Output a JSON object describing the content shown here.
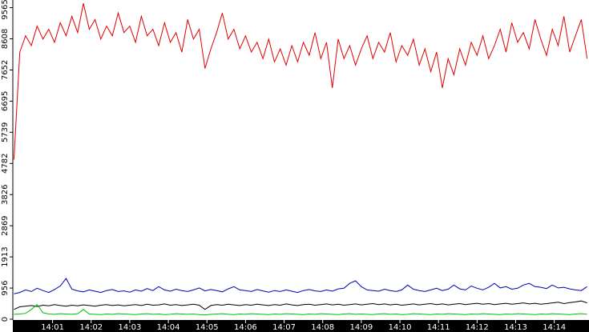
{
  "chart_data": {
    "type": "line",
    "x": [
      0,
      0.15,
      0.3,
      0.45,
      0.6,
      0.75,
      0.9,
      1.05,
      1.2,
      1.35,
      1.5,
      1.65,
      1.8,
      1.95,
      2.1,
      2.25,
      2.4,
      2.55,
      2.7,
      2.85,
      3,
      3.15,
      3.3,
      3.45,
      3.6,
      3.75,
      3.9,
      4.05,
      4.2,
      4.35,
      4.5,
      4.65,
      4.8,
      4.95,
      5.1,
      5.25,
      5.4,
      5.55,
      5.7,
      5.85,
      6,
      6.15,
      6.3,
      6.45,
      6.6,
      6.75,
      6.9,
      7.05,
      7.2,
      7.35,
      7.5,
      7.65,
      7.8,
      7.95,
      8.1,
      8.25,
      8.4,
      8.55,
      8.7,
      8.85,
      9,
      9.15,
      9.3,
      9.45,
      9.6,
      9.75,
      9.9,
      10.05,
      10.2,
      10.35,
      10.5,
      10.65,
      10.8,
      10.95,
      11.1,
      11.25,
      11.4,
      11.55,
      11.7,
      11.85,
      12,
      12.15,
      12.3,
      12.45,
      12.6,
      12.75,
      12.9,
      13.05,
      13.2,
      13.35,
      13.5,
      13.65,
      13.8,
      13.95,
      14.1,
      14.25,
      14.4,
      14.55,
      14.7,
      14.85
    ],
    "xlim": [
      -0.03,
      14.9
    ],
    "xticks": [
      {
        "value": 1,
        "label": "14:01"
      },
      {
        "value": 2,
        "label": "14:02"
      },
      {
        "value": 3,
        "label": "14:03"
      },
      {
        "value": 4,
        "label": "14:04"
      },
      {
        "value": 5,
        "label": "14:05"
      },
      {
        "value": 6,
        "label": "14:06"
      },
      {
        "value": 7,
        "label": "14:07"
      },
      {
        "value": 8,
        "label": "14:08"
      },
      {
        "value": 9,
        "label": "14:09"
      },
      {
        "value": 10,
        "label": "14:10"
      },
      {
        "value": 11,
        "label": "14:11"
      },
      {
        "value": 12,
        "label": "14:12"
      },
      {
        "value": 13,
        "label": "14:13"
      },
      {
        "value": 14,
        "label": "14:14"
      }
    ],
    "ylim": [
      0,
      9800
    ],
    "yticks": [
      0,
      956,
      1913,
      2869,
      3826,
      4782,
      5739,
      6695,
      7652,
      8608,
      9565
    ],
    "series": [
      {
        "color": "#e00000",
        "values": [
          4900,
          8200,
          8700,
          8400,
          9000,
          8600,
          8900,
          8500,
          9100,
          8700,
          9300,
          8800,
          9700,
          8900,
          9200,
          8600,
          9000,
          8700,
          9400,
          8800,
          9000,
          8500,
          9300,
          8700,
          8900,
          8400,
          9100,
          8500,
          8800,
          8200,
          9200,
          8600,
          8900,
          7700,
          8300,
          8800,
          9400,
          8600,
          8900,
          8300,
          8700,
          8200,
          8500,
          8000,
          8600,
          7900,
          8300,
          7800,
          8400,
          7900,
          8500,
          8100,
          8800,
          8000,
          8500,
          7100,
          8600,
          8000,
          8400,
          7800,
          8300,
          8700,
          8000,
          8500,
          8200,
          8800,
          7900,
          8400,
          8100,
          8600,
          7800,
          8300,
          7600,
          8200,
          7100,
          8000,
          7500,
          8300,
          7800,
          8500,
          8100,
          8700,
          8000,
          8400,
          8900,
          8200,
          9100,
          8500,
          8800,
          8300,
          9200,
          8600,
          8100,
          8900,
          8400,
          9300,
          8200,
          8700,
          9200,
          8000
        ]
      },
      {
        "color": "#0000b0",
        "values": [
          780,
          820,
          900,
          850,
          950,
          880,
          820,
          910,
          1020,
          1250,
          920,
          870,
          840,
          900,
          860,
          820,
          880,
          910,
          850,
          870,
          830,
          900,
          860,
          940,
          880,
          1000,
          900,
          860,
          920,
          880,
          850,
          900,
          960,
          870,
          910,
          880,
          840,
          930,
          1000,
          900,
          880,
          850,
          910,
          870,
          830,
          880,
          850,
          900,
          860,
          820,
          880,
          910,
          870,
          850,
          900,
          860,
          930,
          950,
          1100,
          1180,
          1000,
          900,
          880,
          860,
          920,
          880,
          850,
          900,
          1050,
          920,
          880,
          850,
          900,
          950,
          880,
          920,
          1050,
          930,
          900,
          1020,
          950,
          900,
          980,
          1100,
          960,
          1000,
          920,
          950,
          1050,
          1100,
          1000,
          980,
          940,
          1050,
          960,
          980,
          930,
          900,
          880,
          1000
        ]
      },
      {
        "color": "#000000",
        "values": [
          300,
          380,
          400,
          420,
          390,
          430,
          410,
          450,
          420,
          400,
          430,
          410,
          440,
          420,
          400,
          430,
          450,
          420,
          440,
          410,
          430,
          450,
          420,
          460,
          430,
          440,
          470,
          430,
          450,
          420,
          440,
          460,
          430,
          300,
          420,
          450,
          430,
          460,
          440,
          420,
          450,
          430,
          460,
          440,
          420,
          450,
          430,
          470,
          440,
          420,
          450,
          460,
          430,
          450,
          470,
          440,
          460,
          430,
          450,
          470,
          440,
          460,
          480,
          450,
          470,
          440,
          460,
          430,
          450,
          470,
          440,
          460,
          480,
          450,
          470,
          440,
          460,
          480,
          450,
          470,
          490,
          460,
          480,
          450,
          470,
          490,
          460,
          480,
          500,
          470,
          490,
          460,
          480,
          500,
          520,
          480,
          510,
          530,
          560,
          500
        ]
      },
      {
        "color": "#00c000",
        "values": [
          150,
          160,
          180,
          300,
          450,
          200,
          160,
          150,
          170,
          160,
          150,
          170,
          300,
          160,
          150,
          140,
          160,
          150,
          170,
          160,
          150,
          140,
          160,
          170,
          150,
          160,
          140,
          150,
          170,
          160,
          150,
          160,
          140,
          130,
          150,
          160,
          170,
          150,
          140,
          160,
          150,
          170,
          160,
          150,
          140,
          160,
          150,
          170,
          160,
          150,
          140,
          160,
          150,
          170,
          160,
          150,
          140,
          160,
          170,
          150,
          160,
          150,
          140,
          160,
          170,
          150,
          160,
          140,
          150,
          170,
          160,
          150,
          140,
          160,
          150,
          170,
          160,
          150,
          140,
          160,
          150,
          170,
          160,
          150,
          140,
          160,
          150,
          170,
          160,
          150,
          140,
          160,
          150,
          170,
          160,
          150,
          140,
          160,
          170,
          150
        ]
      }
    ]
  }
}
